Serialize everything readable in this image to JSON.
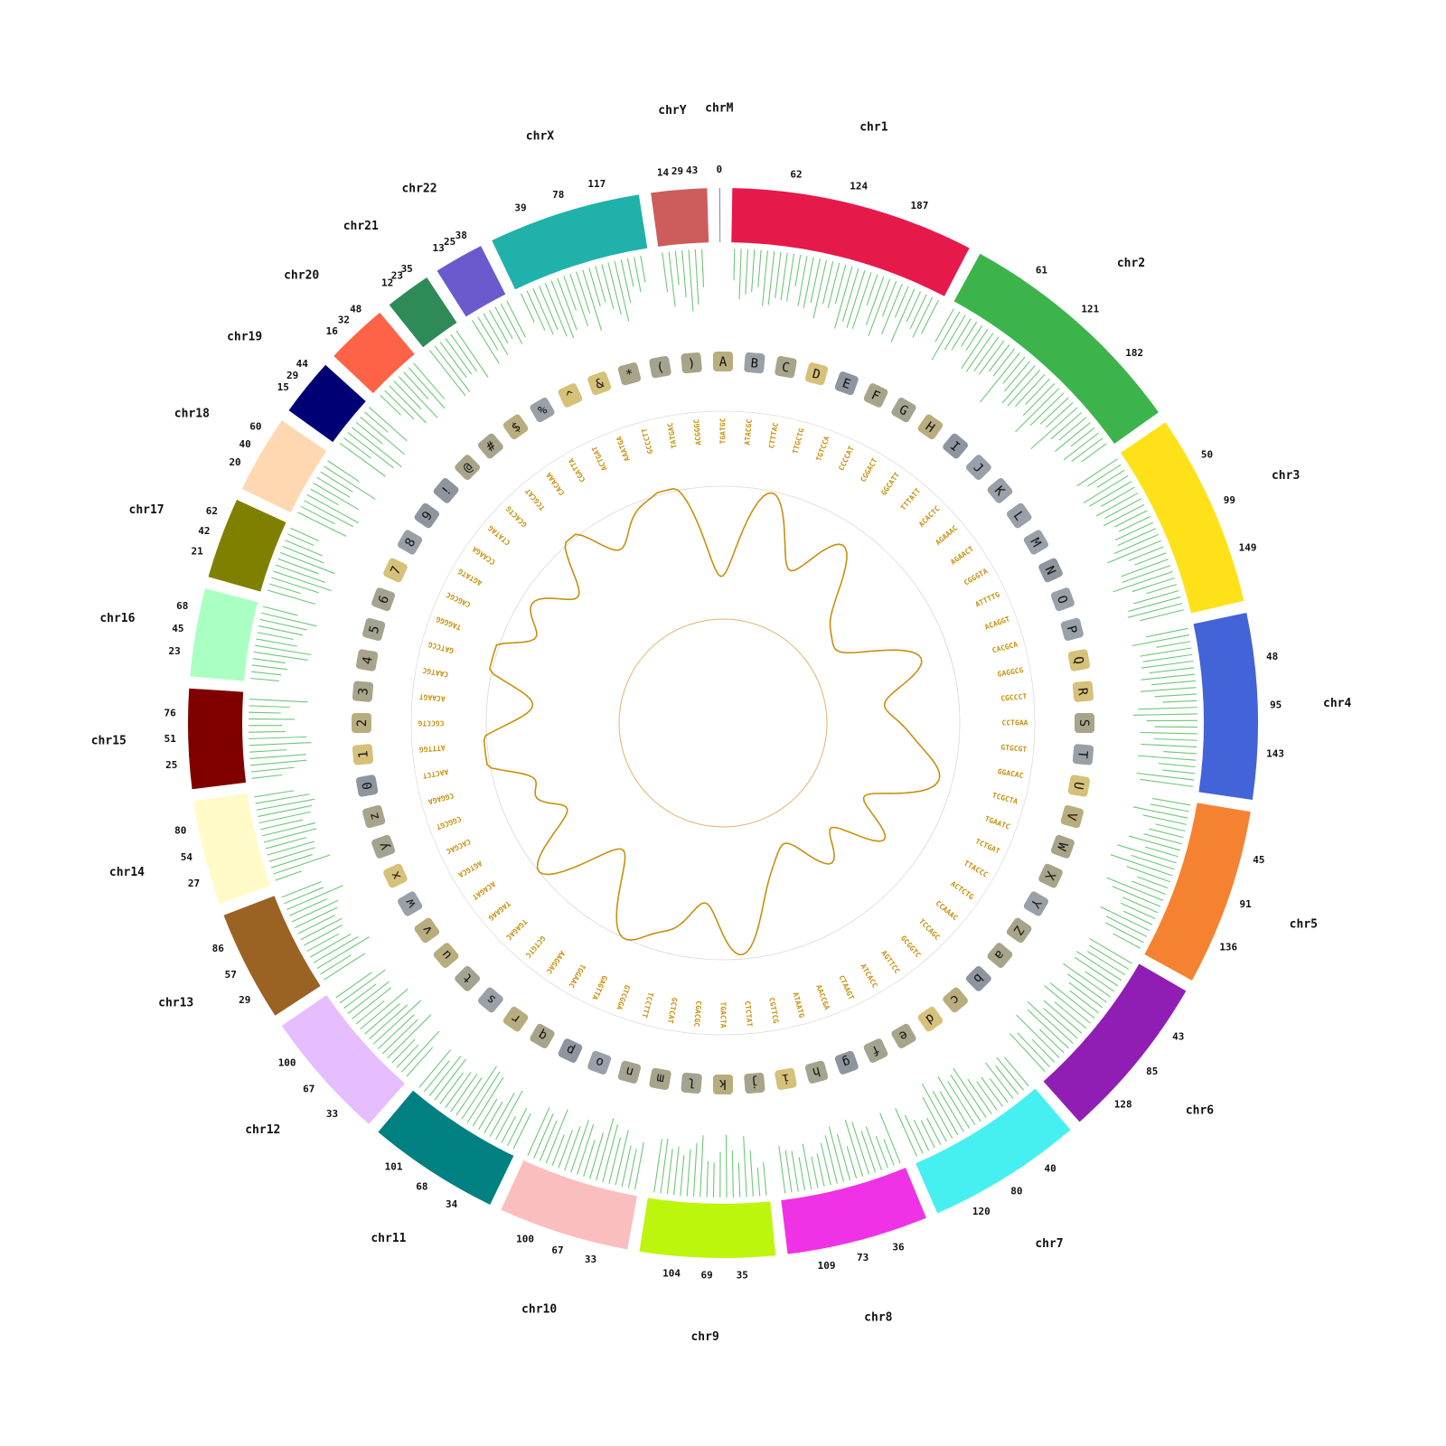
{
  "chromosomes": [
    {
      "name": "chr1",
      "length": 249,
      "color": "#e6194b",
      "ticks": [
        "62",
        "124",
        "187"
      ]
    },
    {
      "name": "chr2",
      "length": 243,
      "color": "#3cb44b",
      "ticks": [
        "61",
        "121",
        "182"
      ]
    },
    {
      "name": "chr3",
      "length": 198,
      "color": "#ffe119",
      "ticks": [
        "50",
        "99",
        "149"
      ]
    },
    {
      "name": "chr4",
      "length": 190,
      "color": "#4363d8",
      "ticks": [
        "48",
        "95",
        "143"
      ]
    },
    {
      "name": "chr5",
      "length": 181,
      "color": "#f58231",
      "ticks": [
        "45",
        "91",
        "136"
      ]
    },
    {
      "name": "chr6",
      "length": 171,
      "color": "#911eb4",
      "ticks": [
        "43",
        "85",
        "128"
      ]
    },
    {
      "name": "chr7",
      "length": 159,
      "color": "#46f0f0",
      "ticks": [
        "40",
        "80",
        "120"
      ]
    },
    {
      "name": "chr8",
      "length": 145,
      "color": "#f032e6",
      "ticks": [
        "36",
        "73",
        "109"
      ]
    },
    {
      "name": "chr9",
      "length": 138,
      "color": "#bcf60c",
      "ticks": [
        "35",
        "69",
        "104"
      ]
    },
    {
      "name": "chr10",
      "length": 134,
      "color": "#fabebe",
      "ticks": [
        "33",
        "67",
        "100"
      ]
    },
    {
      "name": "chr11",
      "length": 135,
      "color": "#008080",
      "ticks": [
        "34",
        "68",
        "101"
      ]
    },
    {
      "name": "chr12",
      "length": 133,
      "color": "#e6beff",
      "ticks": [
        "33",
        "67",
        "100"
      ]
    },
    {
      "name": "chr13",
      "length": 114,
      "color": "#9a6324",
      "ticks": [
        "29",
        "57",
        "86"
      ]
    },
    {
      "name": "chr14",
      "length": 107,
      "color": "#fffac8",
      "ticks": [
        "27",
        "54",
        "80"
      ]
    },
    {
      "name": "chr15",
      "length": 102,
      "color": "#800000",
      "ticks": [
        "25",
        "51",
        "76"
      ]
    },
    {
      "name": "chr16",
      "length": 90,
      "color": "#aaffc3",
      "ticks": [
        "23",
        "45",
        "68"
      ]
    },
    {
      "name": "chr17",
      "length": 83,
      "color": "#808000",
      "ticks": [
        "21",
        "42",
        "62"
      ]
    },
    {
      "name": "chr18",
      "length": 80,
      "color": "#ffd8b1",
      "ticks": [
        "20",
        "40",
        "60"
      ]
    },
    {
      "name": "chr19",
      "length": 59,
      "color": "#000075",
      "ticks": [
        "15",
        "29",
        "44"
      ]
    },
    {
      "name": "chr20",
      "length": 64,
      "color": "#ff6347",
      "ticks": [
        "16",
        "32",
        "48"
      ]
    },
    {
      "name": "chr21",
      "length": 47,
      "color": "#2e8b57",
      "ticks": [
        "12",
        "23",
        "35"
      ]
    },
    {
      "name": "chr22",
      "length": 51,
      "color": "#6a5acd",
      "ticks": [
        "13",
        "25",
        "38"
      ]
    },
    {
      "name": "chrX",
      "length": 156,
      "color": "#20b2aa",
      "ticks": [
        "39",
        "78",
        "117"
      ]
    },
    {
      "name": "chrY",
      "length": 57,
      "color": "#cd5c5c",
      "ticks": [
        "14",
        "29",
        "43"
      ]
    },
    {
      "name": "chrM",
      "length": 1,
      "color": "#888888",
      "ticks": [
        "0"
      ]
    }
  ],
  "glyphs": [
    "A",
    "B",
    "C",
    "D",
    "E",
    "F",
    "G",
    "H",
    "I",
    "J",
    "K",
    "L",
    "M",
    "N",
    "O",
    "P",
    "Q",
    "R",
    "S",
    "T",
    "U",
    "V",
    "W",
    "X",
    "Y",
    "Z",
    "a",
    "b",
    "c",
    "d",
    "e",
    "f",
    "g",
    "h",
    "i",
    "j",
    "k",
    "l",
    "m",
    "n",
    "o",
    "p",
    "q",
    "r",
    "s",
    "t",
    "u",
    "v",
    "w",
    "x",
    "y",
    "z",
    "0",
    "1",
    "2",
    "3",
    "4",
    "5",
    "6",
    "7",
    "8",
    "9",
    "!",
    "@",
    "#",
    "$",
    "%",
    "^",
    "&",
    "*",
    "(",
    ")"
  ],
  "sequences": [
    "TGATGC",
    "ATACGC",
    "CTTTAC",
    "TTGCTG",
    "TGTCCA",
    "CCCCAT",
    "CGGACT",
    "GGCATT",
    "TTTATT",
    "ACACTC",
    "AGAAAC",
    "AGAACT",
    "CGGGTA",
    "ATTTTG",
    "ACAGGT",
    "CACGCA",
    "GAGGCG",
    "CGCCCT",
    "CCTGAA",
    "GTGCGT",
    "GGACAC",
    "TCGCTA",
    "TGAATC",
    "TCTGAT",
    "TTACCC",
    "ACTCTG",
    "CCAAAC",
    "TCCAGC",
    "GCGGTC",
    "AGTTCC",
    "ATCACC",
    "CTAAGT",
    "AACCGA",
    "ATAATG",
    "CGTTCG",
    "CTCTAT",
    "TGACTA",
    "CGACGC",
    "GCTCAT",
    "TCCTTT",
    "GTCGGA",
    "GAGTTA",
    "TGGAAC",
    "AAGGAC",
    "GCTGTC",
    "TGAGAC",
    "TAGAAG",
    "ACAGAT",
    "AGTGCA",
    "CACGAC",
    "CGGCGT",
    "CGGAGA",
    "AACTCT",
    "ATTTGG",
    "CGCCTG",
    "ACAAGT",
    "CAATGC",
    "GATCCG",
    "TAGGGG",
    "CAGCGC",
    "AGTATG",
    "CCAAGA",
    "CTATAG",
    "GCACTG",
    "TCGCAT",
    "CACAAA",
    "CGATTA",
    "ACTGAT",
    "AAATGA",
    "GCCCTT",
    "TATGAC",
    "ACGGGC"
  ]
}
